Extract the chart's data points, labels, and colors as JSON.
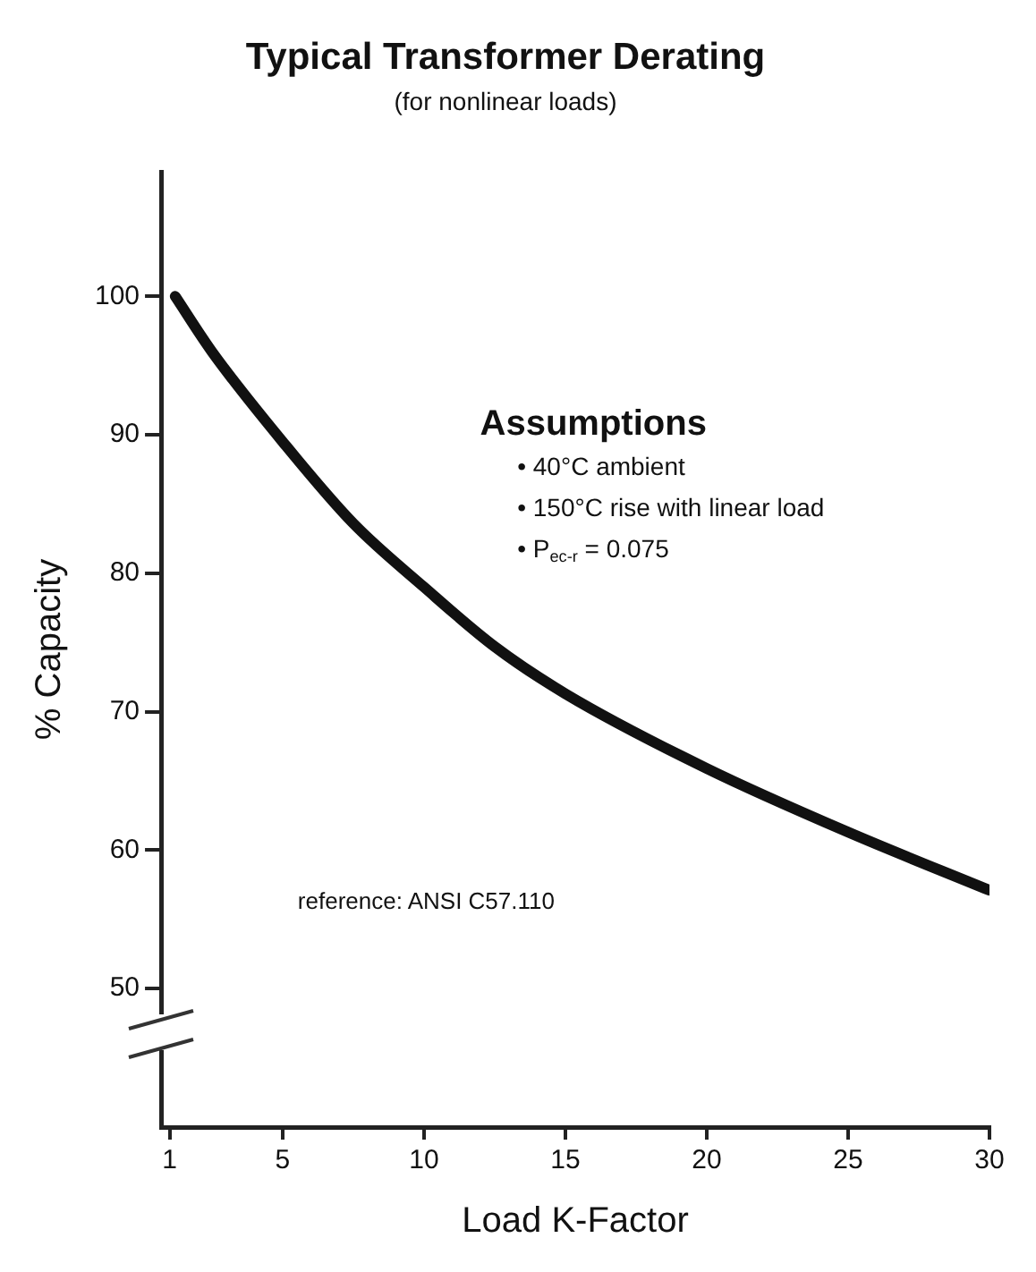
{
  "chart_data": {
    "type": "line",
    "title": "Typical Transformer Derating",
    "subtitle": "(for nonlinear loads)",
    "xlabel": "Load K-Factor",
    "ylabel": "% Capacity",
    "x": [
      1.2,
      2.5,
      5,
      7.5,
      10,
      12.5,
      15,
      20,
      25,
      30
    ],
    "series": [
      {
        "color": "#111111",
        "values": [
          100,
          96,
          89.5,
          83.6,
          79,
          74.7,
          71.3,
          65.9,
          61.3,
          57.1
        ]
      }
    ],
    "xlim": [
      0.7,
      30
    ],
    "xticks": [
      1,
      5,
      10,
      15,
      20,
      25,
      30
    ],
    "ylim": [
      40,
      109
    ],
    "yticks": [
      50,
      60,
      70,
      80,
      90,
      100
    ],
    "grid": false,
    "legend": false,
    "marker": "none",
    "line_style": "solid",
    "annotations": [
      "Assumptions",
      "• 40°C ambient",
      "• 150°C rise with linear load",
      "• P$_{ec-r}$ = 0.075",
      "reference: ANSI C57.110"
    ]
  }
}
